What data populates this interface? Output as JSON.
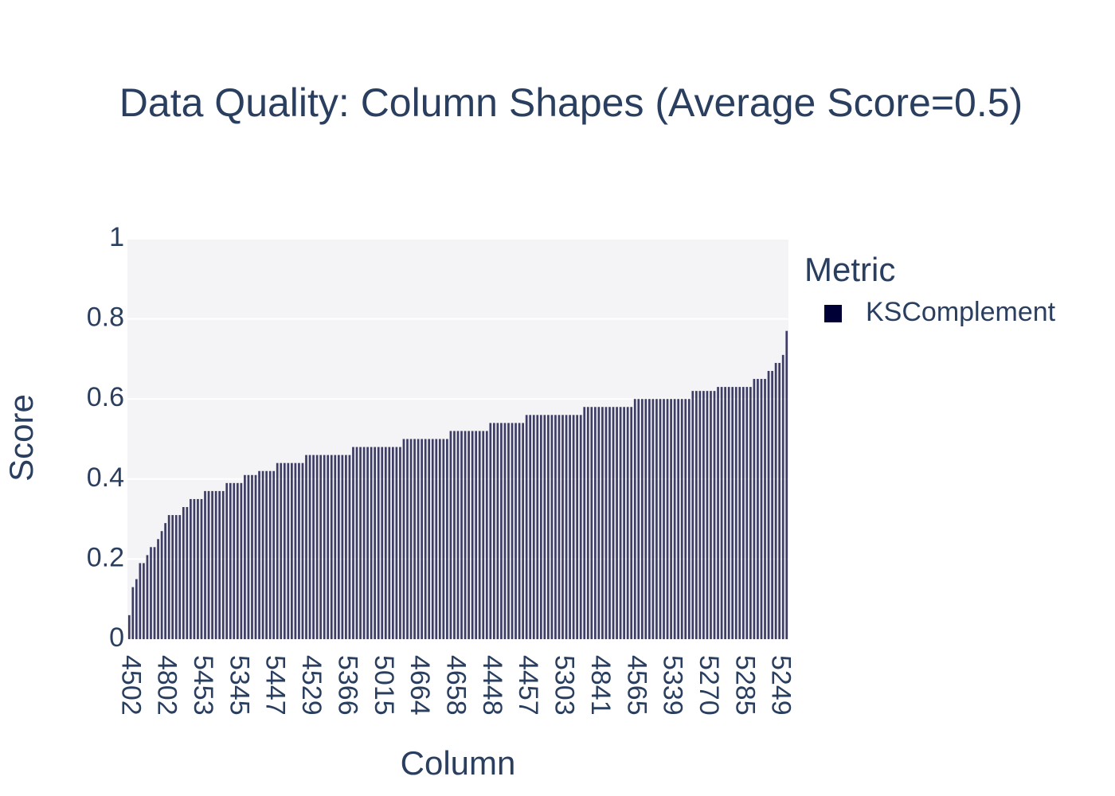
{
  "chart_data": {
    "type": "bar",
    "title": "Data Quality: Column Shapes (Average Score=0.5)",
    "x_label": "Column",
    "y_label": "Score",
    "legend_title": "Metric",
    "categories": [
      "4502",
      null,
      null,
      null,
      null,
      null,
      null,
      null,
      null,
      null,
      "4802",
      null,
      null,
      null,
      null,
      null,
      null,
      null,
      null,
      null,
      "5453",
      null,
      null,
      null,
      null,
      null,
      null,
      null,
      null,
      null,
      "5345",
      null,
      null,
      null,
      null,
      null,
      null,
      null,
      null,
      null,
      "5447",
      null,
      null,
      null,
      null,
      null,
      null,
      null,
      null,
      null,
      "4529",
      null,
      null,
      null,
      null,
      null,
      null,
      null,
      null,
      null,
      "5366",
      null,
      null,
      null,
      null,
      null,
      null,
      null,
      null,
      null,
      "5015",
      null,
      null,
      null,
      null,
      null,
      null,
      null,
      null,
      null,
      "4664",
      null,
      null,
      null,
      null,
      null,
      null,
      null,
      null,
      null,
      "4658",
      null,
      null,
      null,
      null,
      null,
      null,
      null,
      null,
      null,
      "4448",
      null,
      null,
      null,
      null,
      null,
      null,
      null,
      null,
      null,
      "4457",
      null,
      null,
      null,
      null,
      null,
      null,
      null,
      null,
      null,
      "5303",
      null,
      null,
      null,
      null,
      null,
      null,
      null,
      null,
      null,
      "4841",
      null,
      null,
      null,
      null,
      null,
      null,
      null,
      null,
      null,
      "4565",
      null,
      null,
      null,
      null,
      null,
      null,
      null,
      null,
      null,
      "5339",
      null,
      null,
      null,
      null,
      null,
      null,
      null,
      null,
      null,
      "5270",
      null,
      null,
      null,
      null,
      null,
      null,
      null,
      null,
      null,
      "5285",
      null,
      null,
      null,
      null,
      null,
      null,
      null,
      null,
      null,
      "5249",
      null,
      null
    ],
    "series": [
      {
        "name": "KSComplement",
        "color": "#000036",
        "values": [
          0.06,
          0.13,
          0.15,
          0.19,
          0.19,
          0.21,
          0.23,
          0.23,
          0.25,
          0.27,
          0.29,
          0.31,
          0.31,
          0.31,
          0.31,
          0.33,
          0.33,
          0.35,
          0.35,
          0.35,
          0.35,
          0.37,
          0.37,
          0.37,
          0.37,
          0.37,
          0.37,
          0.39,
          0.39,
          0.39,
          0.39,
          0.39,
          0.41,
          0.41,
          0.41,
          0.41,
          0.42,
          0.42,
          0.42,
          0.42,
          0.42,
          0.44,
          0.44,
          0.44,
          0.44,
          0.44,
          0.44,
          0.44,
          0.44,
          0.46,
          0.46,
          0.46,
          0.46,
          0.46,
          0.46,
          0.46,
          0.46,
          0.46,
          0.46,
          0.46,
          0.46,
          0.46,
          0.48,
          0.48,
          0.48,
          0.48,
          0.48,
          0.48,
          0.48,
          0.48,
          0.48,
          0.48,
          0.48,
          0.48,
          0.48,
          0.48,
          0.5,
          0.5,
          0.5,
          0.5,
          0.5,
          0.5,
          0.5,
          0.5,
          0.5,
          0.5,
          0.5,
          0.5,
          0.5,
          0.52,
          0.52,
          0.52,
          0.52,
          0.52,
          0.52,
          0.52,
          0.52,
          0.52,
          0.52,
          0.52,
          0.54,
          0.54,
          0.54,
          0.54,
          0.54,
          0.54,
          0.54,
          0.54,
          0.54,
          0.54,
          0.56,
          0.56,
          0.56,
          0.56,
          0.56,
          0.56,
          0.56,
          0.56,
          0.56,
          0.56,
          0.56,
          0.56,
          0.56,
          0.56,
          0.56,
          0.56,
          0.58,
          0.58,
          0.58,
          0.58,
          0.58,
          0.58,
          0.58,
          0.58,
          0.58,
          0.58,
          0.58,
          0.58,
          0.58,
          0.58,
          0.6,
          0.6,
          0.6,
          0.6,
          0.6,
          0.6,
          0.6,
          0.6,
          0.6,
          0.6,
          0.6,
          0.6,
          0.6,
          0.6,
          0.6,
          0.6,
          0.62,
          0.62,
          0.62,
          0.62,
          0.62,
          0.62,
          0.62,
          0.63,
          0.63,
          0.63,
          0.63,
          0.63,
          0.63,
          0.63,
          0.63,
          0.63,
          0.63,
          0.65,
          0.65,
          0.65,
          0.65,
          0.67,
          0.67,
          0.69,
          0.69,
          0.71,
          0.77
        ]
      }
    ],
    "ylim": [
      0,
      1
    ],
    "yticks": [
      0,
      0.2,
      0.4,
      0.6,
      0.8,
      1
    ],
    "grid": true
  }
}
